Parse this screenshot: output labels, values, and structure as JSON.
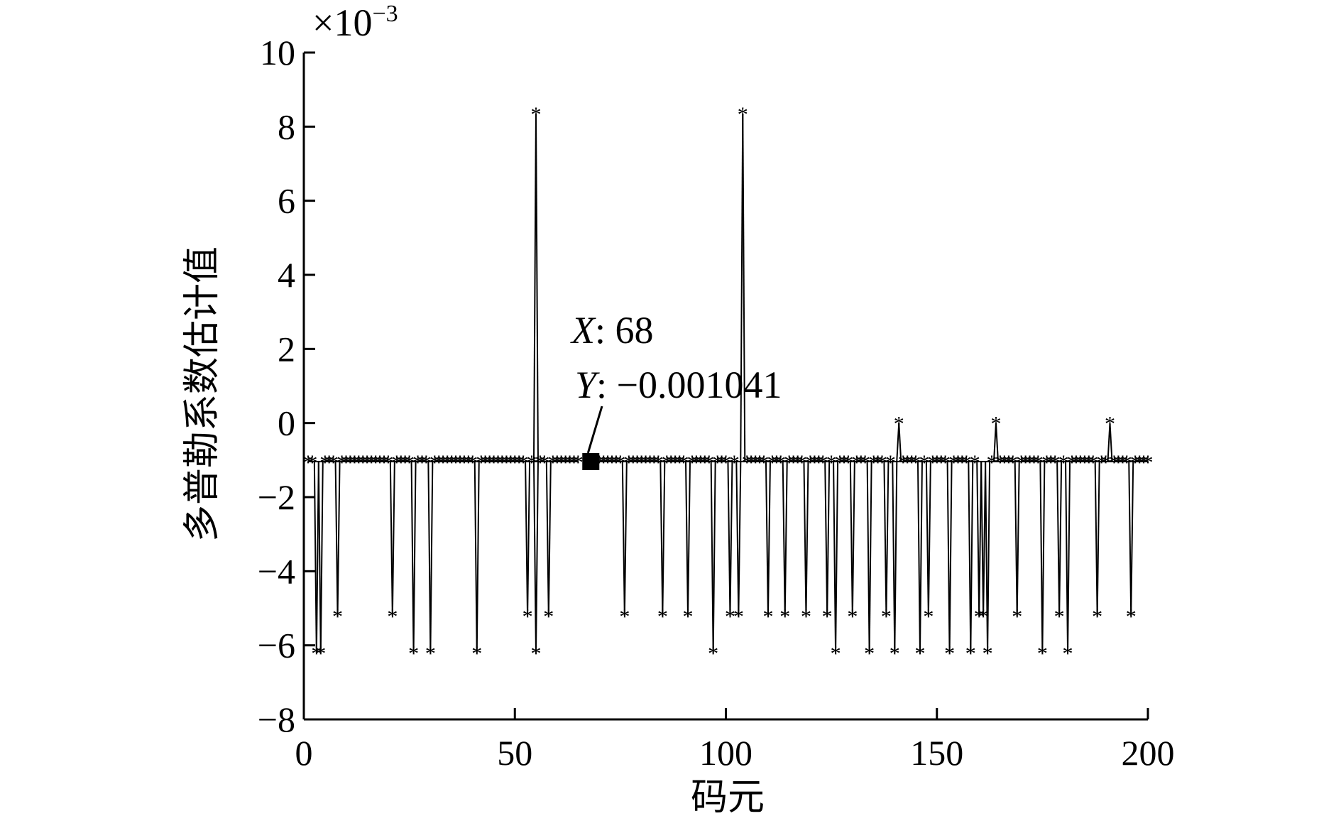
{
  "chart_data": {
    "type": "line",
    "xlabel": "码元",
    "ylabel": "多普勒系数估计值",
    "y_scale_exponent": "×10⁻³",
    "y_exponent_base": "×10",
    "y_exponent_power": "−3",
    "xlim": [
      0,
      200
    ],
    "ylim": [
      -8,
      10
    ],
    "x_ticks": [
      0,
      50,
      100,
      150,
      200
    ],
    "x_tick_labels": [
      "0",
      "50",
      "100",
      "150",
      "200"
    ],
    "y_ticks": [
      -8,
      -6,
      -4,
      -2,
      0,
      2,
      4,
      6,
      8,
      10
    ],
    "y_tick_labels": [
      "−8",
      "−6",
      "−4",
      "−2",
      "0",
      "2",
      "4",
      "6",
      "8",
      "10"
    ],
    "grid": false,
    "marker": "*",
    "datatip": {
      "x": 68,
      "y": -0.001041,
      "x_label": "X",
      "x_value": ": 68",
      "y_label": "Y",
      "y_value": ": −0.001041"
    },
    "series": [
      {
        "baseline": -1.04,
        "x": [
          1,
          200
        ],
        "points": [
          {
            "x": 3,
            "y": -6.2
          },
          {
            "x": 4,
            "y": -6.2
          },
          {
            "x": 8,
            "y": -5.2
          },
          {
            "x": 21,
            "y": -5.2
          },
          {
            "x": 26,
            "y": -6.2
          },
          {
            "x": 30,
            "y": -6.2
          },
          {
            "x": 41,
            "y": -6.2
          },
          {
            "x": 53,
            "y": -5.2
          },
          {
            "x": 55,
            "y": 8.35
          },
          {
            "x": 55,
            "y": -6.2
          },
          {
            "x": 58,
            "y": -5.2
          },
          {
            "x": 76,
            "y": -5.2
          },
          {
            "x": 85,
            "y": -5.2
          },
          {
            "x": 91,
            "y": -5.2
          },
          {
            "x": 97,
            "y": -6.2
          },
          {
            "x": 101,
            "y": -5.2
          },
          {
            "x": 103,
            "y": -5.2
          },
          {
            "x": 104,
            "y": 8.35
          },
          {
            "x": 110,
            "y": -5.2
          },
          {
            "x": 114,
            "y": -5.2
          },
          {
            "x": 119,
            "y": -5.2
          },
          {
            "x": 124,
            "y": -5.2
          },
          {
            "x": 126,
            "y": -6.2
          },
          {
            "x": 130,
            "y": -5.2
          },
          {
            "x": 134,
            "y": -6.2
          },
          {
            "x": 138,
            "y": -5.2
          },
          {
            "x": 140,
            "y": -6.2
          },
          {
            "x": 141,
            "y": 0.0
          },
          {
            "x": 146,
            "y": -6.2
          },
          {
            "x": 148,
            "y": -5.2
          },
          {
            "x": 153,
            "y": -6.2
          },
          {
            "x": 158,
            "y": -6.2
          },
          {
            "x": 160,
            "y": -5.2
          },
          {
            "x": 161,
            "y": -5.2
          },
          {
            "x": 162,
            "y": -6.2
          },
          {
            "x": 164,
            "y": 0.0
          },
          {
            "x": 169,
            "y": -5.2
          },
          {
            "x": 175,
            "y": -6.2
          },
          {
            "x": 179,
            "y": -5.2
          },
          {
            "x": 181,
            "y": -6.2
          },
          {
            "x": 188,
            "y": -5.2
          },
          {
            "x": 191,
            "y": 0.0
          },
          {
            "x": 196,
            "y": -5.2
          }
        ]
      }
    ]
  }
}
